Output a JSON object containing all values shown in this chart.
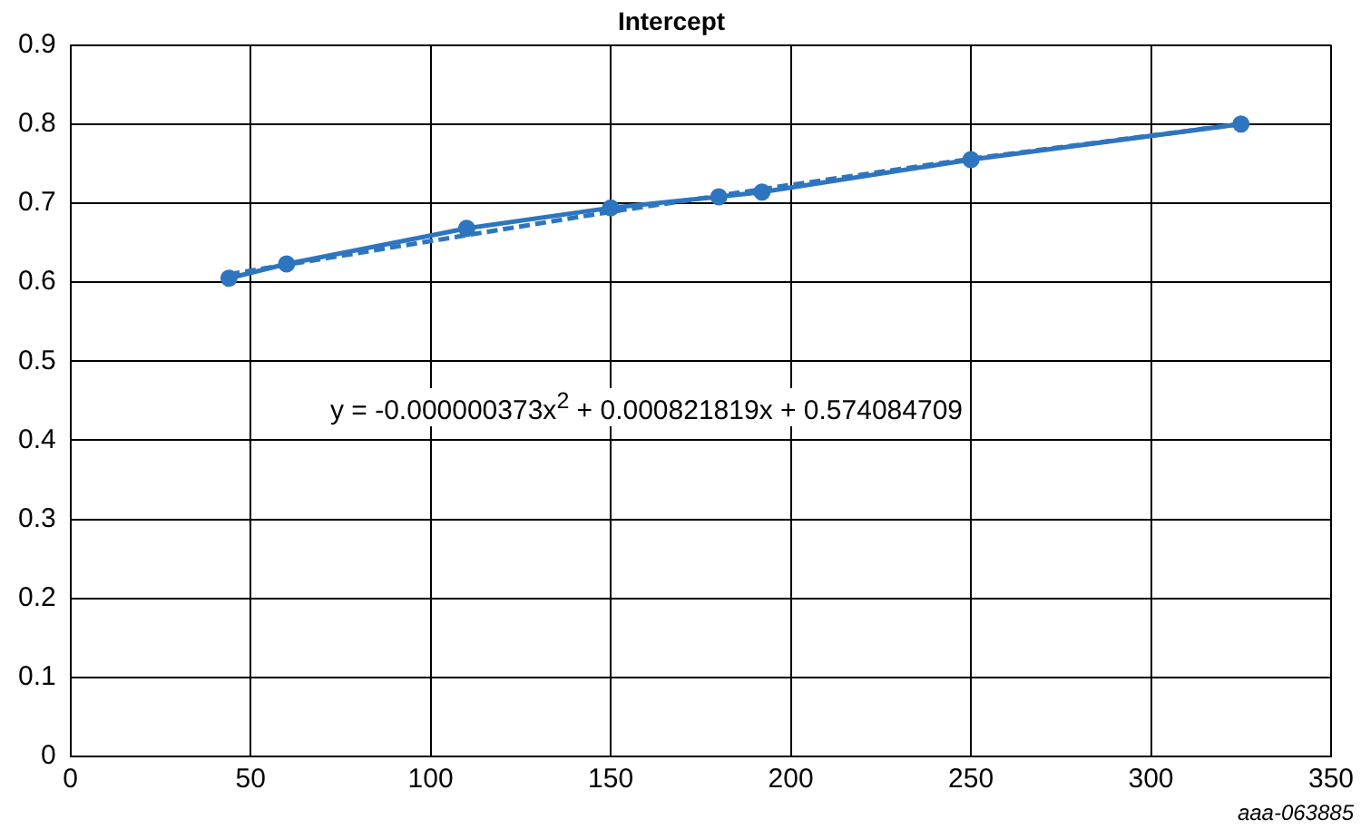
{
  "chart_data": {
    "type": "line",
    "title": "Intercept",
    "x": [
      44,
      60,
      110,
      150,
      180,
      192,
      250,
      325
    ],
    "series": [
      {
        "type": "line",
        "color": "#2e75c0",
        "marker": "circle",
        "line_style": "solid",
        "values": [
          0.605,
          0.623,
          0.668,
          0.694,
          0.708,
          0.714,
          0.755,
          0.8
        ]
      },
      {
        "type": "line",
        "color": "#2e75c0",
        "marker": "none",
        "line_style": "dashed",
        "x": [
          44,
          100,
          150,
          200,
          250,
          325
        ],
        "values": [
          0.61,
          0.652,
          0.689,
          0.723,
          0.756,
          0.8
        ]
      }
    ],
    "xlim": [
      0,
      350
    ],
    "xticks": [
      0,
      50,
      100,
      150,
      200,
      250,
      300,
      350
    ],
    "ylim": [
      0,
      0.9
    ],
    "yticks": [
      0,
      0.1,
      0.2,
      0.3,
      0.4,
      0.5,
      0.6,
      0.7,
      0.8,
      0.9
    ],
    "grid": true,
    "legend": false,
    "annotations": [
      "y = -0.000000373x$^{2}$ + 0.000821819x + 0.574084709",
      "aaa-063885"
    ]
  }
}
